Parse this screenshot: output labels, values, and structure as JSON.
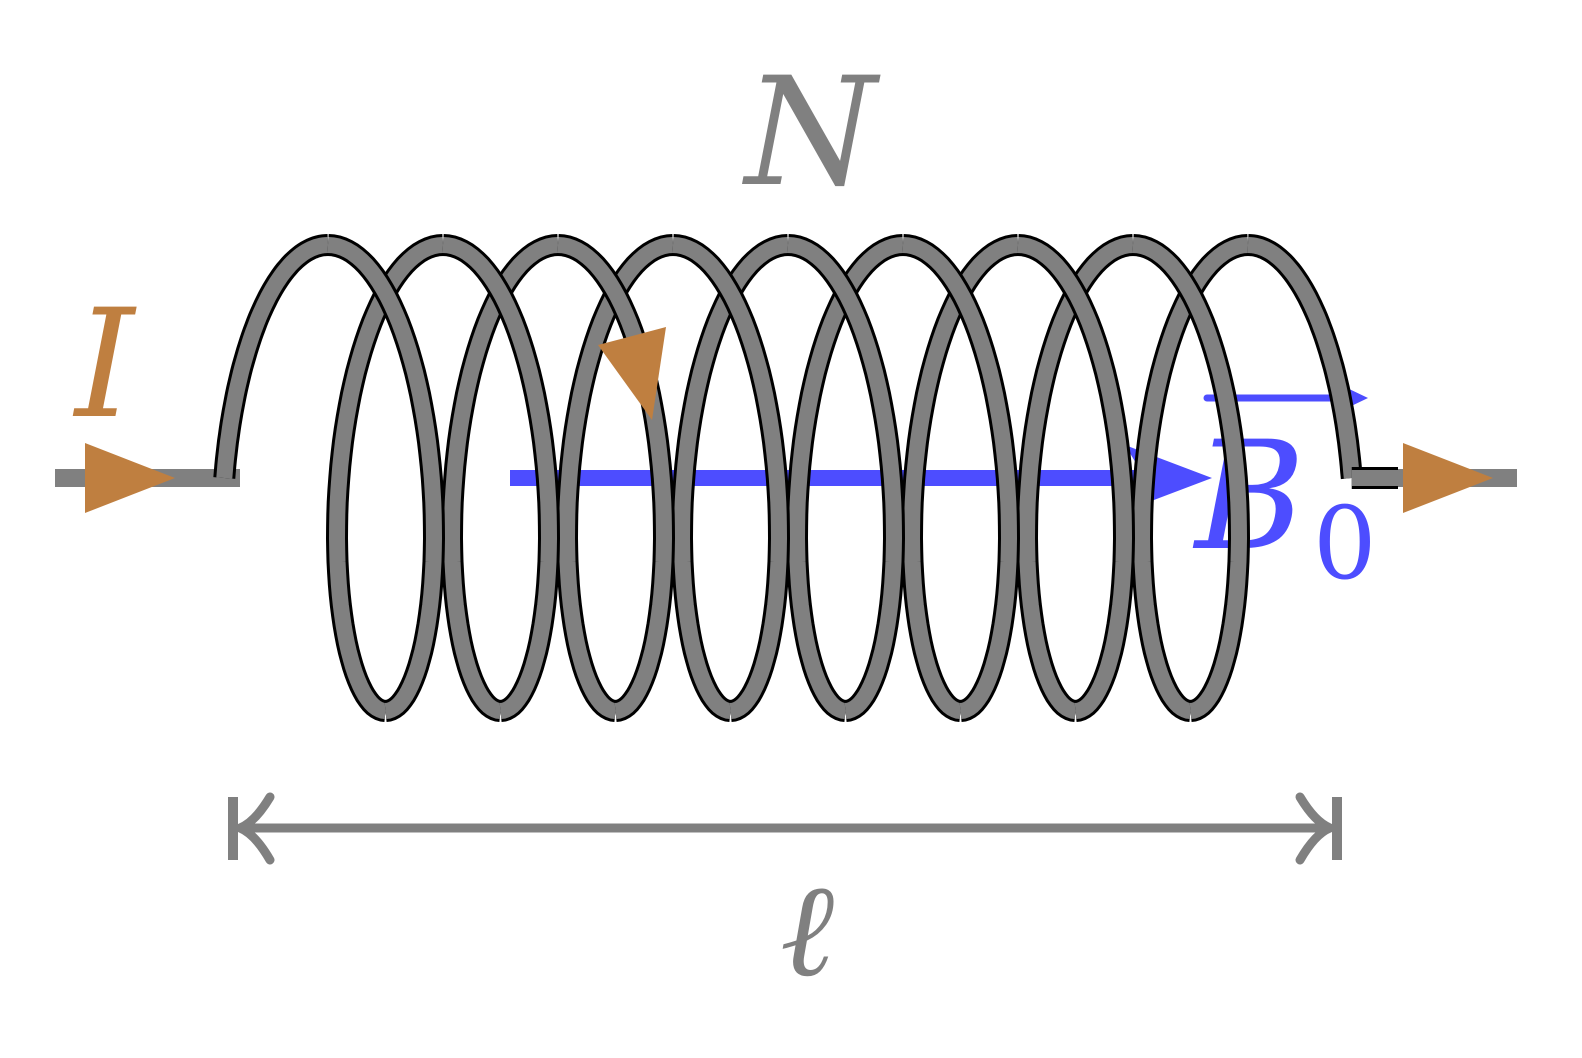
{
  "labels": {
    "turns": "N",
    "current": "I",
    "field": "B",
    "field_subscript": "0",
    "length": "ℓ"
  },
  "colors": {
    "wire": "#808080",
    "outline": "#000000",
    "current": "#bf7f40",
    "field": "#4d4dff"
  },
  "icons": {
    "current_arrow": "triangle-right",
    "field_arrow": "arrow-right",
    "dimension": "double-headed-arrow"
  }
}
